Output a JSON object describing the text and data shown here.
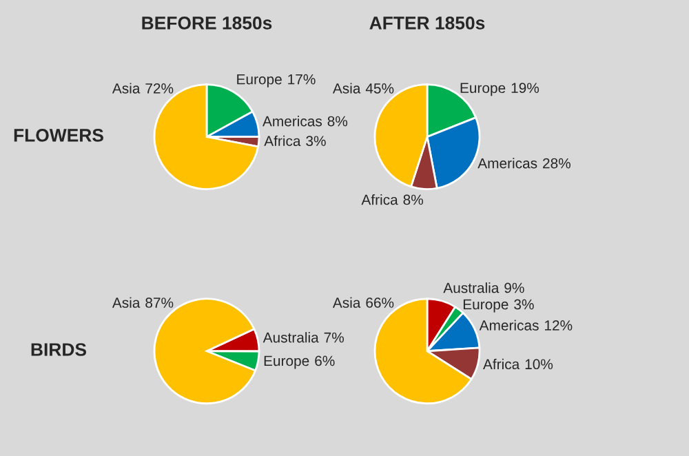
{
  "chart_data": [
    {
      "type": "pie",
      "title": "BEFORE 1850s",
      "ylabel": "FLOWERS",
      "categories": [
        "Europe",
        "Americas",
        "Africa",
        "Asia"
      ],
      "values": [
        17,
        8,
        3,
        72
      ],
      "colors": [
        "#00b050",
        "#0070c0",
        "#943634",
        "#ffc000"
      ],
      "value_labels": [
        "17%",
        "8%",
        "3%",
        "72%"
      ]
    },
    {
      "type": "pie",
      "title": "AFTER 1850s",
      "categories": [
        "Europe",
        "Americas",
        "Africa",
        "Asia"
      ],
      "values": [
        19,
        28,
        8,
        45
      ],
      "colors": [
        "#00b050",
        "#0070c0",
        "#943634",
        "#ffc000"
      ],
      "value_labels": [
        "19%",
        "28%",
        "8%",
        "45%"
      ]
    },
    {
      "type": "pie",
      "ylabel": "BIRDS",
      "categories": [
        "Australia",
        "Europe",
        "Asia"
      ],
      "values": [
        7,
        6,
        87
      ],
      "colors": [
        "#c00000",
        "#00b050",
        "#ffc000"
      ],
      "value_labels": [
        "7%",
        "6%",
        "87%"
      ]
    },
    {
      "type": "pie",
      "categories": [
        "Australia",
        "Europe",
        "Americas",
        "Africa",
        "Asia"
      ],
      "values": [
        9,
        3,
        12,
        10,
        66
      ],
      "colors": [
        "#c00000",
        "#00b050",
        "#0070c0",
        "#943634",
        "#ffc000"
      ],
      "value_labels": [
        "9%",
        "3%",
        "12%",
        "10%",
        "66%"
      ]
    }
  ]
}
